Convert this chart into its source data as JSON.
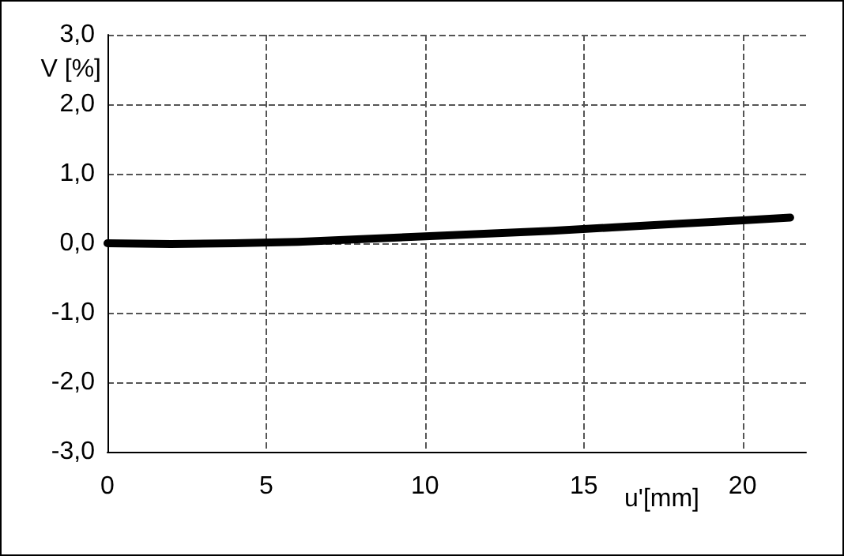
{
  "chart_data": {
    "type": "line",
    "xlabel": "u'[mm]",
    "ylabel": "V [%]",
    "x": [
      0,
      2,
      4,
      6,
      8,
      10,
      12,
      14,
      16,
      18,
      20,
      21.5
    ],
    "series": [
      {
        "color": "#000000",
        "values": [
          0,
          -0.01,
          0,
          0.02,
          0.06,
          0.1,
          0.14,
          0.18,
          0.23,
          0.28,
          0.33,
          0.37
        ]
      }
    ],
    "xlim": [
      0,
      22
    ],
    "xticks": [
      0,
      5,
      10,
      15,
      20
    ],
    "ylim": [
      -3,
      3
    ],
    "yticks": [
      {
        "value": -3,
        "label": "-3,0"
      },
      {
        "value": -2,
        "label": "-2,0"
      },
      {
        "value": -1,
        "label": "-1,0"
      },
      {
        "value": 0,
        "label": "0,0"
      },
      {
        "value": 1,
        "label": "1,0"
      },
      {
        "value": 2,
        "label": "2,0"
      },
      {
        "value": 3,
        "label": "3,0"
      }
    ],
    "grid": true,
    "marker": "none",
    "line_style": "solid"
  }
}
